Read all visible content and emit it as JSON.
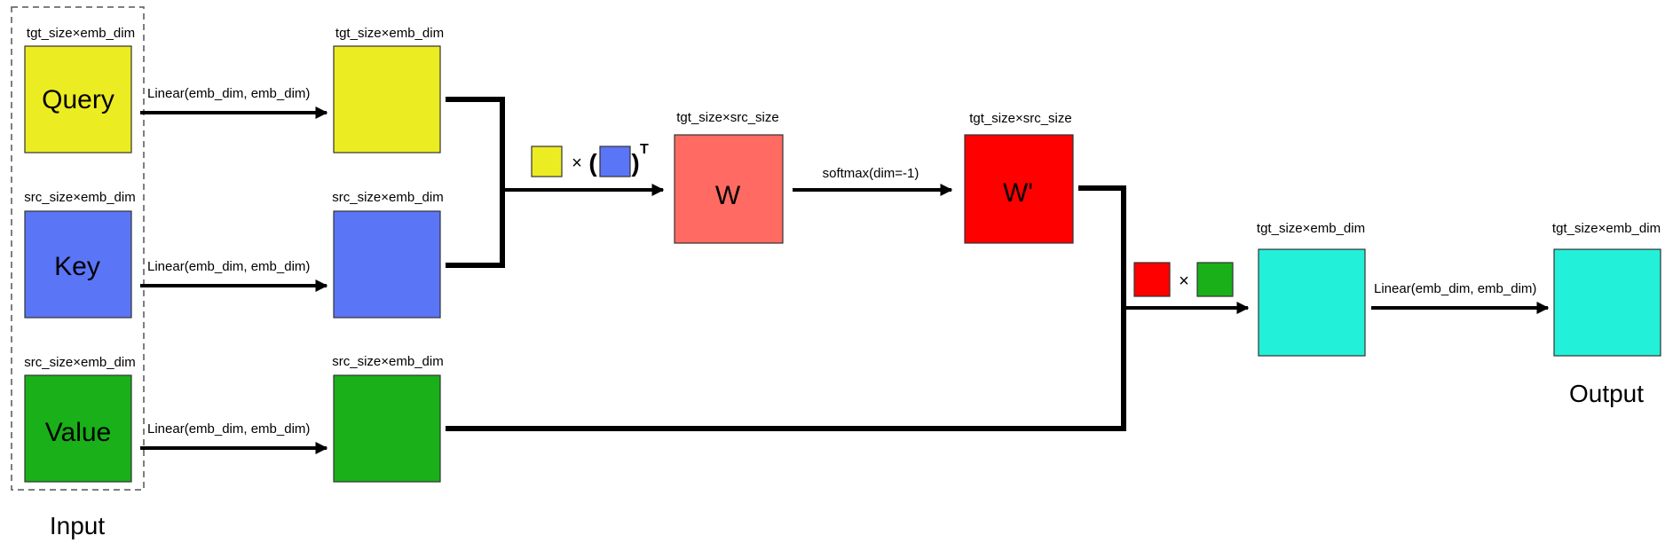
{
  "inputs": {
    "query": {
      "label": "Query",
      "shape": "tgt_size×emb_dim"
    },
    "key": {
      "label": "Key",
      "shape": "src_size×emb_dim"
    },
    "value": {
      "label": "Value",
      "shape": "src_size×emb_dim"
    },
    "group_label": "Input"
  },
  "projections": {
    "q": {
      "linear": "Linear(emb_dim, emb_dim)",
      "shape": "tgt_size×emb_dim"
    },
    "k": {
      "linear": "Linear(emb_dim, emb_dim)",
      "shape": "src_size×emb_dim"
    },
    "v": {
      "linear": "Linear(emb_dim, emb_dim)",
      "shape": "src_size×emb_dim"
    }
  },
  "scores": {
    "op_times": "×",
    "op_open": "(",
    "op_close": ")",
    "op_sup": "T",
    "w_label": "W",
    "w_shape": "tgt_size×src_size",
    "softmax": "softmax(dim=-1)",
    "wp_label": "W'",
    "wp_shape": "tgt_size×src_size"
  },
  "output": {
    "op_times": "×",
    "attn_shape": "tgt_size×emb_dim",
    "linear": "Linear(emb_dim, emb_dim)",
    "out_shape": "tgt_size×emb_dim",
    "label": "Output"
  },
  "colors": {
    "yellow": "#ECEC23",
    "blue": "#5A75F5",
    "green": "#19B019",
    "salmon": "#FF6A62",
    "red": "#FF0000",
    "cyan": "#23F0D8"
  }
}
